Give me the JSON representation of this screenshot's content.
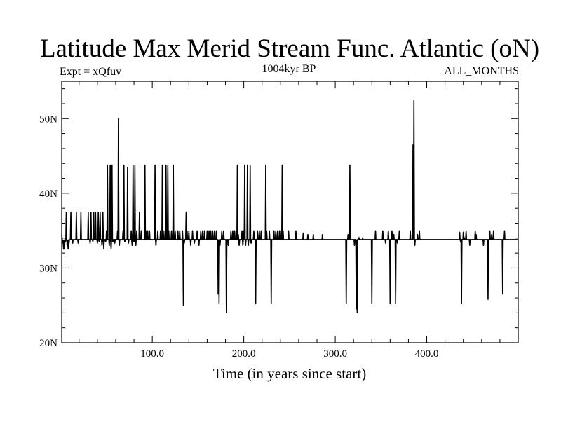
{
  "chart_data": {
    "type": "line",
    "title": "Latitude Max Merid Stream Func. Atlantic (oN)",
    "left_subtitle": "Expt = xQfuv",
    "center_subtitle": "1004kyr BP",
    "right_subtitle": "ALL_MONTHS",
    "xlabel": "Time (in years since start)",
    "ylabel": "",
    "xlim": [
      1,
      500
    ],
    "ylim": [
      20,
      55
    ],
    "x_ticks": [
      {
        "value": 100,
        "label": "100.0"
      },
      {
        "value": 200,
        "label": "200.0"
      },
      {
        "value": 300,
        "label": "300.0"
      },
      {
        "value": 400,
        "label": "400.0"
      }
    ],
    "y_ticks": [
      {
        "value": 20,
        "label": "20N"
      },
      {
        "value": 30,
        "label": "30N"
      },
      {
        "value": 40,
        "label": "40N"
      },
      {
        "value": 50,
        "label": "50N"
      }
    ],
    "baseline": 33.8,
    "spikes": [
      [
        1,
        34.5
      ],
      [
        2,
        33.3
      ],
      [
        3,
        32.5
      ],
      [
        4,
        32.5
      ],
      [
        5,
        33.5
      ],
      [
        6,
        37.5
      ],
      [
        7,
        33
      ],
      [
        8,
        32.5
      ],
      [
        9,
        33.3
      ],
      [
        11,
        37.5
      ],
      [
        13,
        33.3
      ],
      [
        17,
        37.5
      ],
      [
        19,
        33.3
      ],
      [
        22,
        37.5
      ],
      [
        30,
        37.5
      ],
      [
        32,
        33.3
      ],
      [
        33,
        37.5
      ],
      [
        35,
        33.5
      ],
      [
        36,
        37.5
      ],
      [
        38,
        37.5
      ],
      [
        40,
        33.3
      ],
      [
        41,
        37.5
      ],
      [
        42,
        33.5
      ],
      [
        43,
        37.5
      ],
      [
        45,
        33
      ],
      [
        46,
        37.5
      ],
      [
        47,
        32.5
      ],
      [
        49,
        33.5
      ],
      [
        50,
        35
      ],
      [
        51,
        43.8
      ],
      [
        53,
        33
      ],
      [
        54,
        43.8
      ],
      [
        55,
        32.5
      ],
      [
        56,
        43.8
      ],
      [
        57,
        33.5
      ],
      [
        59,
        33.3
      ],
      [
        62,
        35
      ],
      [
        63,
        50
      ],
      [
        64,
        33
      ],
      [
        68,
        35
      ],
      [
        69,
        43.8
      ],
      [
        70,
        33.5
      ],
      [
        73,
        43.5
      ],
      [
        74,
        33.3
      ],
      [
        77,
        35
      ],
      [
        78,
        33
      ],
      [
        79,
        43.8
      ],
      [
        80,
        33.5
      ],
      [
        81,
        43.8
      ],
      [
        82,
        33
      ],
      [
        83,
        35
      ],
      [
        86,
        37.5
      ],
      [
        88,
        35
      ],
      [
        92,
        43.8
      ],
      [
        93,
        35
      ],
      [
        95,
        35
      ],
      [
        97,
        35
      ],
      [
        103,
        43.8
      ],
      [
        104,
        33
      ],
      [
        106,
        35
      ],
      [
        109,
        35
      ],
      [
        111,
        43.8
      ],
      [
        112,
        35
      ],
      [
        114,
        35
      ],
      [
        115,
        43.8
      ],
      [
        116,
        35
      ],
      [
        117,
        43.8
      ],
      [
        118,
        35
      ],
      [
        121,
        35
      ],
      [
        123,
        43.8
      ],
      [
        125,
        35
      ],
      [
        128,
        35
      ],
      [
        130,
        35
      ],
      [
        133,
        35
      ],
      [
        134,
        25
      ],
      [
        135,
        33.3
      ],
      [
        137,
        37.5
      ],
      [
        138,
        35
      ],
      [
        140,
        35
      ],
      [
        142,
        33
      ],
      [
        144,
        35
      ],
      [
        146,
        33.3
      ],
      [
        149,
        35
      ],
      [
        151,
        33
      ],
      [
        153,
        35
      ],
      [
        155,
        35
      ],
      [
        157,
        35
      ],
      [
        160,
        35
      ],
      [
        162,
        35
      ],
      [
        164,
        35
      ],
      [
        166,
        35
      ],
      [
        168,
        35
      ],
      [
        170,
        35
      ],
      [
        172,
        26.5
      ],
      [
        173,
        25.2
      ],
      [
        174,
        33
      ],
      [
        176,
        35
      ],
      [
        178,
        35
      ],
      [
        181,
        24
      ],
      [
        183,
        33
      ],
      [
        186,
        35
      ],
      [
        188,
        35
      ],
      [
        190,
        35
      ],
      [
        192,
        35
      ],
      [
        193,
        43.8
      ],
      [
        194,
        34.5
      ],
      [
        195,
        33
      ],
      [
        198,
        35
      ],
      [
        199,
        33
      ],
      [
        200,
        35
      ],
      [
        201,
        43.8
      ],
      [
        202,
        33
      ],
      [
        204,
        43.8
      ],
      [
        205,
        33
      ],
      [
        207,
        43.8
      ],
      [
        208,
        33.3
      ],
      [
        211,
        35
      ],
      [
        213,
        25.2
      ],
      [
        215,
        35
      ],
      [
        217,
        35
      ],
      [
        219,
        35
      ],
      [
        224,
        43.8
      ],
      [
        225,
        35
      ],
      [
        228,
        35
      ],
      [
        230,
        25.2
      ],
      [
        233,
        35
      ],
      [
        235,
        35
      ],
      [
        237,
        35
      ],
      [
        239,
        35
      ],
      [
        240,
        35
      ],
      [
        242,
        43.8
      ],
      [
        243,
        35
      ],
      [
        249,
        35
      ],
      [
        257,
        35
      ],
      [
        265,
        34.7
      ],
      [
        270,
        34.5
      ],
      [
        276,
        34.5
      ],
      [
        286,
        34.5
      ],
      [
        312,
        25.2
      ],
      [
        314,
        34.5
      ],
      [
        316,
        43.8
      ],
      [
        319,
        33.8
      ],
      [
        321,
        33
      ],
      [
        323,
        24.5
      ],
      [
        324,
        24
      ],
      [
        326,
        34
      ],
      [
        330,
        34
      ],
      [
        338,
        33.8
      ],
      [
        340,
        25.2
      ],
      [
        344,
        35
      ],
      [
        352,
        35
      ],
      [
        355,
        33.3
      ],
      [
        358,
        35
      ],
      [
        360,
        25.2
      ],
      [
        362,
        35
      ],
      [
        364,
        34.5
      ],
      [
        366,
        25.2
      ],
      [
        368,
        33.3
      ],
      [
        370,
        35
      ],
      [
        382,
        35
      ],
      [
        385,
        46.5
      ],
      [
        386,
        52.5
      ],
      [
        387,
        33
      ],
      [
        390,
        34.5
      ],
      [
        392,
        35
      ],
      [
        436,
        34.8
      ],
      [
        437,
        33.5
      ],
      [
        438,
        25.2
      ],
      [
        440,
        34.8
      ],
      [
        441,
        34
      ],
      [
        443,
        35
      ],
      [
        447,
        33
      ],
      [
        453,
        35
      ],
      [
        454,
        34.5
      ],
      [
        462,
        33
      ],
      [
        467,
        25.8
      ],
      [
        469,
        35
      ],
      [
        471,
        34.5
      ],
      [
        473,
        35
      ],
      [
        483,
        26.5
      ],
      [
        485,
        35
      ]
    ]
  }
}
